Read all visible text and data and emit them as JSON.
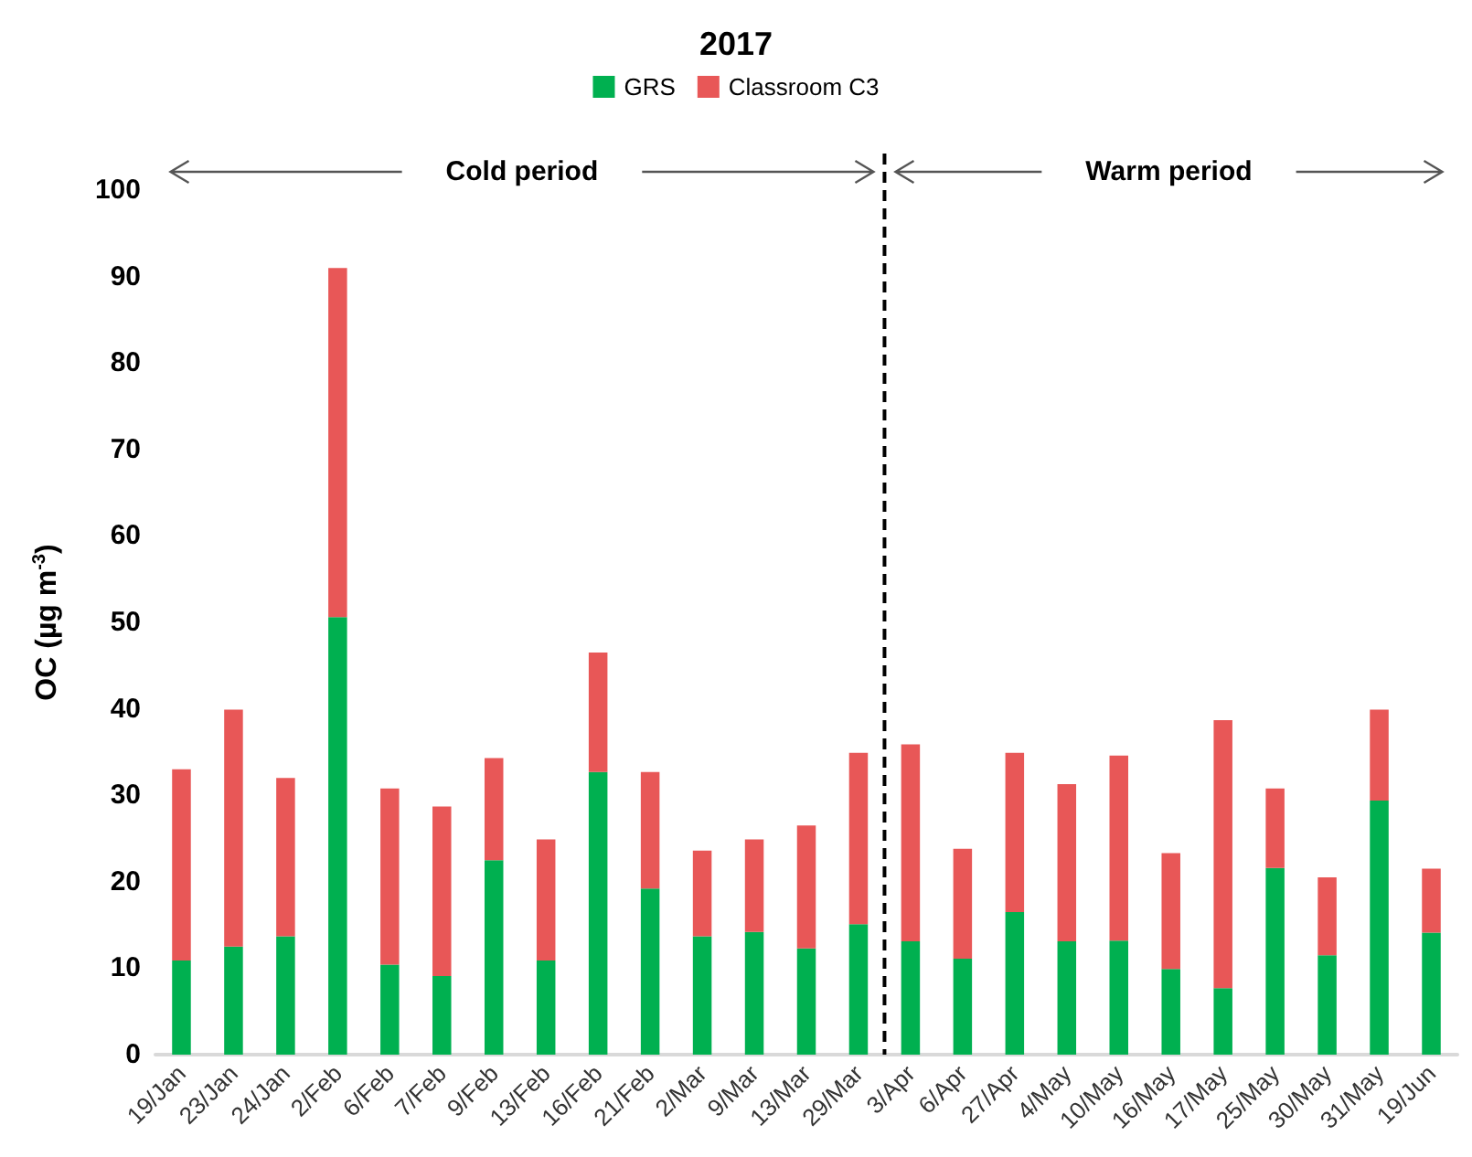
{
  "chart_data": {
    "type": "bar",
    "title": "2017",
    "ylabel": "OC (µg m$^{-3}$)",
    "categories": [
      "19/Jan",
      "23/Jan",
      "24/Jan",
      "2/Feb",
      "6/Feb",
      "7/Feb",
      "9/Feb",
      "13/Feb",
      "16/Feb",
      "21/Feb",
      "2/Mar",
      "9/Mar",
      "13/Mar",
      "29/Mar",
      "3/Apr",
      "6/Apr",
      "27/Apr",
      "4/May",
      "10/May",
      "16/May",
      "17/May",
      "25/May",
      "30/May",
      "31/May",
      "19/Jun"
    ],
    "series": [
      {
        "name": "GRS",
        "color": "#00b050",
        "values": [
          10.9,
          12.5,
          13.7,
          50.6,
          10.4,
          9.1,
          22.5,
          10.9,
          32.7,
          19.2,
          13.7,
          14.2,
          12.3,
          15.1,
          13.1,
          11.1,
          16.5,
          13.1,
          13.2,
          9.9,
          7.7,
          21.6,
          11.5,
          29.4,
          14.1
        ]
      },
      {
        "name": "Classroom C3",
        "color": "#e85757",
        "values": [
          22.1,
          27.4,
          18.3,
          40.4,
          20.4,
          19.6,
          11.8,
          14.0,
          13.8,
          13.5,
          9.9,
          10.7,
          14.2,
          19.8,
          22.8,
          12.7,
          18.4,
          18.2,
          21.4,
          13.4,
          31.0,
          9.2,
          9.0,
          10.5,
          7.4
        ]
      }
    ],
    "stacked": true,
    "ylim": [
      0,
      100
    ],
    "yticks": [
      0,
      10,
      20,
      30,
      40,
      50,
      60,
      70,
      80,
      90,
      100
    ],
    "grid": false,
    "legend": "top",
    "annotations": [
      "Cold period",
      "Warm period"
    ]
  }
}
